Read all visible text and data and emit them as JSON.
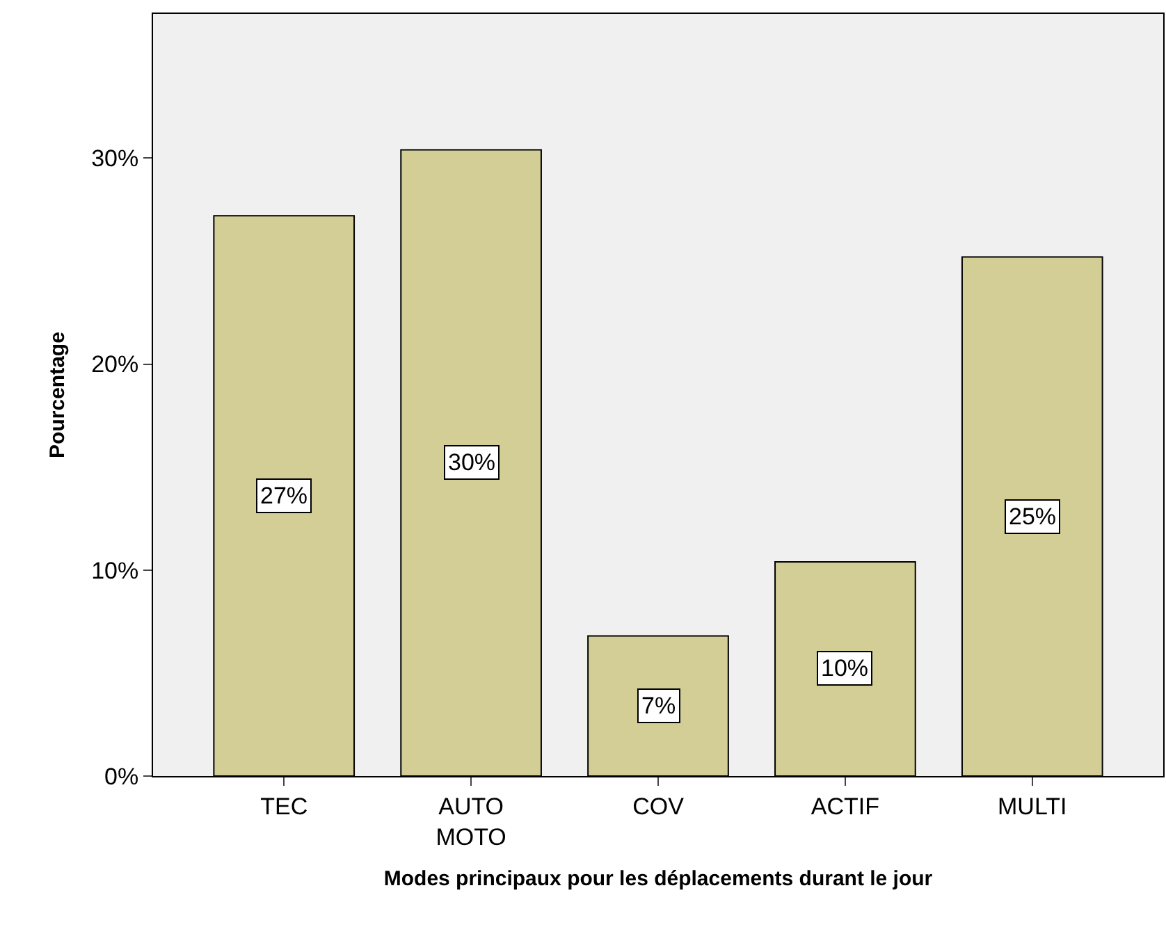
{
  "chart_data": {
    "type": "bar",
    "xlabel": "Modes principaux pour les déplacements durant le jour",
    "ylabel": "Pourcentage",
    "categories": [
      "TEC",
      "AUTO\nMOTO",
      "COV",
      "ACTIF",
      "MULTI"
    ],
    "values": [
      27.2,
      30.4,
      6.8,
      10.4,
      25.2
    ],
    "value_labels": [
      "27%",
      "30%",
      "7%",
      "10%",
      "25%"
    ],
    "color": "#d3ce96",
    "ylim": [
      0,
      37
    ],
    "yticks": [
      {
        "value": 0,
        "label": "0%"
      },
      {
        "value": 10,
        "label": "10%"
      },
      {
        "value": 20,
        "label": "20%"
      },
      {
        "value": 30,
        "label": "30%"
      }
    ],
    "grid": false,
    "legend": false
  }
}
